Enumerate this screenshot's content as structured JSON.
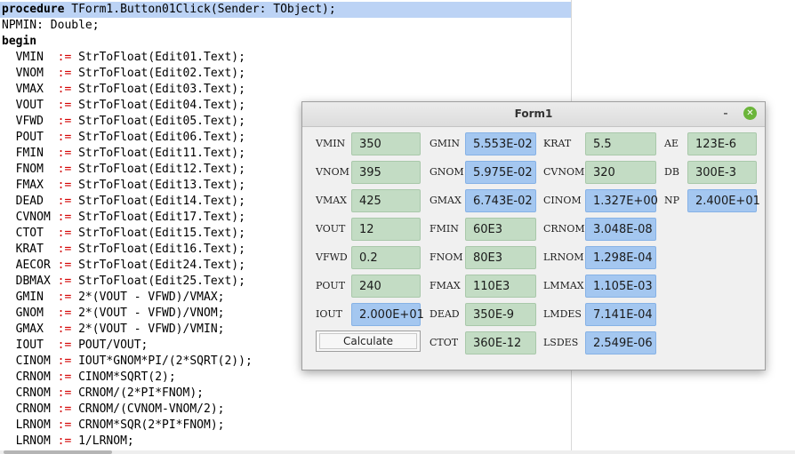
{
  "editor": {
    "lines": [
      {
        "kw": "procedure",
        "rest": " TForm1.Button01Click(Sender: TObject);"
      },
      {
        "plain": "NPMIN: Double;"
      },
      {
        "kw": "begin",
        "rest": ""
      },
      {
        "lhs": "  VMIN  ",
        "op": ":=",
        "rhs": " StrToFloat(Edit01.Text);"
      },
      {
        "lhs": "  VNOM  ",
        "op": ":=",
        "rhs": " StrToFloat(Edit02.Text);"
      },
      {
        "lhs": "  VMAX  ",
        "op": ":=",
        "rhs": " StrToFloat(Edit03.Text);"
      },
      {
        "lhs": "  VOUT  ",
        "op": ":=",
        "rhs": " StrToFloat(Edit04.Text);"
      },
      {
        "lhs": "  VFWD  ",
        "op": ":=",
        "rhs": " StrToFloat(Edit05.Text);"
      },
      {
        "lhs": "  POUT  ",
        "op": ":=",
        "rhs": " StrToFloat(Edit06.Text);"
      },
      {
        "lhs": "  FMIN  ",
        "op": ":=",
        "rhs": " StrToFloat(Edit11.Text);"
      },
      {
        "lhs": "  FNOM  ",
        "op": ":=",
        "rhs": " StrToFloat(Edit12.Text);"
      },
      {
        "lhs": "  FMAX  ",
        "op": ":=",
        "rhs": " StrToFloat(Edit13.Text);"
      },
      {
        "lhs": "  DEAD  ",
        "op": ":=",
        "rhs": " StrToFloat(Edit14.Text);"
      },
      {
        "lhs": "  CVNOM ",
        "op": ":=",
        "rhs": " StrToFloat(Edit17.Text);"
      },
      {
        "lhs": "  CTOT  ",
        "op": ":=",
        "rhs": " StrToFloat(Edit15.Text);"
      },
      {
        "lhs": "  KRAT  ",
        "op": ":=",
        "rhs": " StrToFloat(Edit16.Text);"
      },
      {
        "lhs": "  AECOR ",
        "op": ":=",
        "rhs": " StrToFloat(Edit24.Text);"
      },
      {
        "lhs": "  DBMAX ",
        "op": ":=",
        "rhs": " StrToFloat(Edit25.Text);"
      },
      {
        "lhs": "  GMIN  ",
        "op": ":=",
        "rhs": " 2*(VOUT - VFWD)/VMAX;"
      },
      {
        "lhs": "  GNOM  ",
        "op": ":=",
        "rhs": " 2*(VOUT - VFWD)/VNOM;"
      },
      {
        "lhs": "  GMAX  ",
        "op": ":=",
        "rhs": " 2*(VOUT - VFWD)/VMIN;"
      },
      {
        "lhs": "  IOUT  ",
        "op": ":=",
        "rhs": " POUT/VOUT;"
      },
      {
        "lhs": "  CINOM ",
        "op": ":=",
        "rhs": " IOUT*GNOM*PI/(2*SQRT(2));"
      },
      {
        "lhs": "  CRNOM ",
        "op": ":=",
        "rhs": " CINOM*SQRT(2);"
      },
      {
        "lhs": "  CRNOM ",
        "op": ":=",
        "rhs": " CRNOM/(2*PI*FNOM);"
      },
      {
        "lhs": "  CRNOM ",
        "op": ":=",
        "rhs": " CRNOM/(CVNOM-VNOM/2);"
      },
      {
        "lhs": "  LRNOM ",
        "op": ":=",
        "rhs": " CRNOM*SQR(2*PI*FNOM);"
      },
      {
        "lhs": "  LRNOM ",
        "op": ":=",
        "rhs": " 1/LRNOM;"
      }
    ]
  },
  "form": {
    "title": "Form1",
    "minimize_glyph": "-",
    "close_glyph": "✕",
    "calculate_label": "Calculate",
    "col1": [
      {
        "label": "VMIN",
        "value": "350",
        "color": "green"
      },
      {
        "label": "VNOM",
        "value": "395",
        "color": "green"
      },
      {
        "label": "VMAX",
        "value": "425",
        "color": "green"
      },
      {
        "label": "VOUT",
        "value": "12",
        "color": "green"
      },
      {
        "label": "VFWD",
        "value": "0.2",
        "color": "green"
      },
      {
        "label": "POUT",
        "value": "240",
        "color": "green"
      },
      {
        "label": "IOUT",
        "value": "2.000E+01",
        "color": "blue"
      }
    ],
    "col2": [
      {
        "label": "GMIN",
        "value": "5.553E-02",
        "color": "blue"
      },
      {
        "label": "GNOM",
        "value": "5.975E-02",
        "color": "blue"
      },
      {
        "label": "GMAX",
        "value": "6.743E-02",
        "color": "blue"
      },
      {
        "label": "FMIN",
        "value": "60E3",
        "color": "green"
      },
      {
        "label": "FNOM",
        "value": "80E3",
        "color": "green"
      },
      {
        "label": "FMAX",
        "value": "110E3",
        "color": "green"
      },
      {
        "label": "DEAD",
        "value": "350E-9",
        "color": "green"
      },
      {
        "label": "CTOT",
        "value": "360E-12",
        "color": "green"
      }
    ],
    "col3": [
      {
        "label": "KRAT",
        "value": "5.5",
        "color": "green"
      },
      {
        "label": "CVNOM",
        "value": "320",
        "color": "green"
      },
      {
        "label": "CINOM",
        "value": "1.327E+00",
        "color": "blue"
      },
      {
        "label": "CRNOM",
        "value": "3.048E-08",
        "color": "blue"
      },
      {
        "label": "LRNOM",
        "value": "1.298E-04",
        "color": "blue"
      },
      {
        "label": "LMMAX",
        "value": "1.105E-03",
        "color": "blue"
      },
      {
        "label": "LMDES",
        "value": "7.141E-04",
        "color": "blue"
      },
      {
        "label": "LSDES",
        "value": "2.549E-06",
        "color": "blue"
      }
    ],
    "col4": [
      {
        "label": "AE",
        "value": "123E-6",
        "color": "green"
      },
      {
        "label": "DB",
        "value": "300E-3",
        "color": "green"
      },
      {
        "label": "NP",
        "value": "2.400E+01",
        "color": "blue"
      }
    ],
    "colors": {
      "input": "#c3dcc4",
      "output": "#a4c7f0",
      "highlight": "#bcd3f5"
    }
  }
}
